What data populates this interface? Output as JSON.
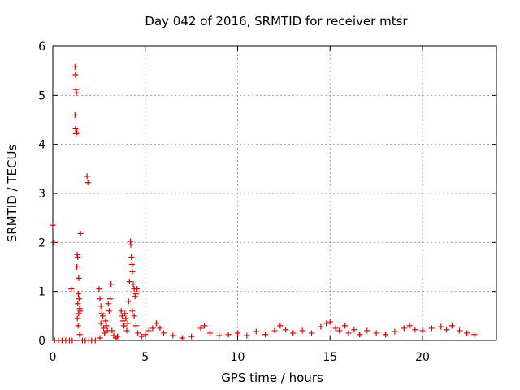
{
  "chart_data": {
    "type": "scatter",
    "title": "Day 042 of 2016, SRMTID for receiver mtsr",
    "xlabel": "GPS time / hours",
    "ylabel": "SRMTID / TECUs",
    "xlim": [
      0,
      24
    ],
    "ylim": [
      0,
      6
    ],
    "xticks": [
      "0",
      "5",
      "10",
      "15",
      "20"
    ],
    "yticks": [
      "0",
      "1",
      "2",
      "3",
      "4",
      "5",
      "6"
    ],
    "grid": true,
    "marker": "+",
    "marker_color": "#e60000",
    "grid_color": "#a0a0a0",
    "series": [
      {
        "name": "SRMTID",
        "points": [
          [
            0.0,
            2.35
          ],
          [
            0.05,
            2.0
          ],
          [
            0.1,
            0.0
          ],
          [
            0.3,
            0.0
          ],
          [
            0.5,
            0.0
          ],
          [
            0.7,
            0.0
          ],
          [
            0.9,
            0.0
          ],
          [
            1.0,
            1.05
          ],
          [
            1.05,
            0.0
          ],
          [
            1.2,
            5.58
          ],
          [
            1.22,
            5.42
          ],
          [
            1.25,
            5.12
          ],
          [
            1.28,
            5.05
          ],
          [
            1.2,
            4.6
          ],
          [
            1.23,
            4.32
          ],
          [
            1.26,
            4.22
          ],
          [
            1.3,
            4.25
          ],
          [
            1.32,
            1.75
          ],
          [
            1.35,
            1.7
          ],
          [
            1.3,
            1.5
          ],
          [
            1.4,
            1.27
          ],
          [
            1.38,
            0.95
          ],
          [
            1.42,
            0.85
          ],
          [
            1.35,
            0.75
          ],
          [
            1.45,
            0.65
          ],
          [
            1.4,
            0.55
          ],
          [
            1.33,
            0.45
          ],
          [
            1.48,
            0.6
          ],
          [
            1.5,
            2.18
          ],
          [
            1.37,
            0.3
          ],
          [
            1.45,
            0.12
          ],
          [
            1.6,
            0.0
          ],
          [
            1.75,
            0.0
          ],
          [
            1.85,
            3.35
          ],
          [
            1.9,
            3.22
          ],
          [
            1.95,
            0.0
          ],
          [
            2.1,
            0.0
          ],
          [
            2.3,
            0.0
          ],
          [
            2.5,
            1.05
          ],
          [
            2.55,
            0.85
          ],
          [
            2.6,
            0.7
          ],
          [
            2.65,
            0.55
          ],
          [
            2.7,
            0.5
          ],
          [
            2.6,
            0.35
          ],
          [
            2.75,
            0.25
          ],
          [
            2.8,
            0.15
          ],
          [
            2.55,
            0.05
          ],
          [
            2.85,
            0.4
          ],
          [
            2.9,
            0.3
          ],
          [
            2.95,
            0.2
          ],
          [
            3.0,
            0.75
          ],
          [
            3.05,
            0.6
          ],
          [
            3.1,
            0.85
          ],
          [
            3.15,
            1.15
          ],
          [
            3.2,
            0.2
          ],
          [
            3.3,
            0.1
          ],
          [
            3.4,
            0.05
          ],
          [
            3.5,
            0.08
          ],
          [
            3.7,
            0.6
          ],
          [
            3.75,
            0.5
          ],
          [
            3.8,
            0.4
          ],
          [
            3.85,
            0.3
          ],
          [
            3.9,
            0.55
          ],
          [
            3.95,
            0.45
          ],
          [
            4.0,
            0.2
          ],
          [
            4.05,
            0.35
          ],
          [
            4.1,
            0.8
          ],
          [
            4.15,
            1.2
          ],
          [
            4.2,
            2.02
          ],
          [
            4.22,
            1.95
          ],
          [
            4.25,
            1.7
          ],
          [
            4.28,
            1.55
          ],
          [
            4.3,
            1.4
          ],
          [
            4.35,
            1.15
          ],
          [
            4.4,
            1.05
          ],
          [
            4.45,
            0.9
          ],
          [
            4.5,
            0.95
          ],
          [
            4.55,
            1.05
          ],
          [
            4.3,
            0.6
          ],
          [
            4.4,
            0.5
          ],
          [
            4.5,
            0.3
          ],
          [
            4.6,
            0.15
          ],
          [
            4.8,
            0.08
          ],
          [
            5.0,
            0.12
          ],
          [
            5.2,
            0.2
          ],
          [
            5.4,
            0.25
          ],
          [
            5.6,
            0.35
          ],
          [
            5.8,
            0.25
          ],
          [
            6.0,
            0.15
          ],
          [
            6.5,
            0.1
          ],
          [
            7.0,
            0.05
          ],
          [
            7.5,
            0.08
          ],
          [
            8.0,
            0.25
          ],
          [
            8.2,
            0.3
          ],
          [
            8.5,
            0.15
          ],
          [
            9.0,
            0.1
          ],
          [
            9.5,
            0.12
          ],
          [
            10.0,
            0.15
          ],
          [
            10.5,
            0.1
          ],
          [
            11.0,
            0.18
          ],
          [
            11.5,
            0.12
          ],
          [
            12.0,
            0.2
          ],
          [
            12.3,
            0.3
          ],
          [
            12.6,
            0.22
          ],
          [
            13.0,
            0.15
          ],
          [
            13.5,
            0.2
          ],
          [
            14.0,
            0.15
          ],
          [
            14.5,
            0.28
          ],
          [
            14.8,
            0.35
          ],
          [
            15.0,
            0.38
          ],
          [
            15.3,
            0.25
          ],
          [
            15.5,
            0.2
          ],
          [
            15.8,
            0.3
          ],
          [
            16.0,
            0.15
          ],
          [
            16.3,
            0.22
          ],
          [
            16.6,
            0.12
          ],
          [
            17.0,
            0.2
          ],
          [
            17.5,
            0.15
          ],
          [
            18.0,
            0.12
          ],
          [
            18.5,
            0.18
          ],
          [
            19.0,
            0.25
          ],
          [
            19.3,
            0.3
          ],
          [
            19.6,
            0.22
          ],
          [
            20.0,
            0.2
          ],
          [
            20.5,
            0.25
          ],
          [
            21.0,
            0.28
          ],
          [
            21.3,
            0.22
          ],
          [
            21.6,
            0.3
          ],
          [
            22.0,
            0.2
          ],
          [
            22.4,
            0.15
          ],
          [
            22.8,
            0.12
          ]
        ]
      }
    ]
  }
}
